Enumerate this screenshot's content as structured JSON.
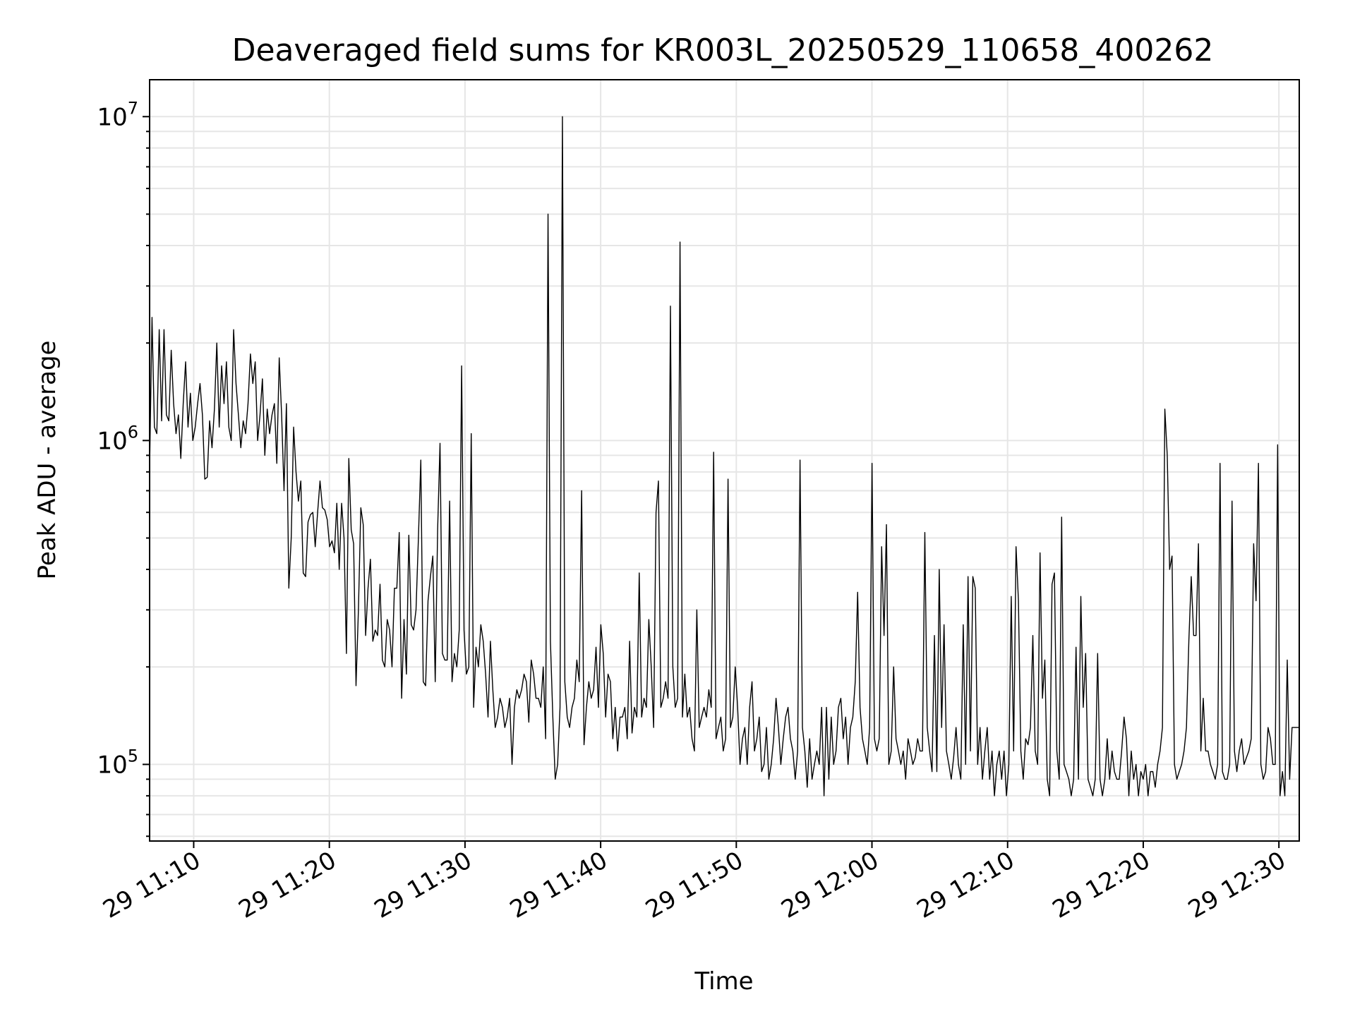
{
  "chart_data": {
    "type": "line",
    "title": "Deaveraged field sums for KR003L_20250529_110658_400262",
    "xlabel": "Time",
    "ylabel": "Peak ADU - average",
    "yscale": "log",
    "grid": true,
    "line_color": "#000000",
    "x_range": [
      "29 11:06:45",
      "29 12:31:30"
    ],
    "ylim": [
      58000,
      13000000
    ],
    "x_ticks": [
      "29 11:10",
      "29 11:20",
      "29 11:30",
      "29 11:40",
      "29 11:50",
      "29 12:00",
      "29 12:10",
      "29 12:20",
      "29 12:30"
    ],
    "y_ticks": [
      {
        "value": 100000,
        "base": "10",
        "exp": "5"
      },
      {
        "value": 1000000,
        "base": "10",
        "exp": "6"
      },
      {
        "value": 10000000,
        "base": "10",
        "exp": "7"
      }
    ],
    "series": [
      {
        "start": "29 11:06:45",
        "end": "29 12:31:30",
        "values": [
          820000,
          2400000,
          1100000,
          1050000,
          2200000,
          1150000,
          2200000,
          1200000,
          1150000,
          1900000,
          1300000,
          1050000,
          1200000,
          880000,
          1300000,
          1750000,
          1100000,
          1400000,
          1000000,
          1100000,
          1300000,
          1500000,
          1200000,
          760000,
          770000,
          1150000,
          950000,
          1250000,
          2000000,
          1100000,
          1700000,
          1300000,
          1750000,
          1100000,
          1000000,
          2200000,
          1500000,
          1200000,
          950000,
          1150000,
          1050000,
          1300000,
          1850000,
          1500000,
          1750000,
          1000000,
          1200000,
          1550000,
          900000,
          1250000,
          1050000,
          1200000,
          1300000,
          850000,
          1800000,
          1200000,
          700000,
          1300000,
          350000,
          500000,
          1100000,
          800000,
          650000,
          750000,
          390000,
          380000,
          560000,
          590000,
          600000,
          470000,
          600000,
          750000,
          620000,
          610000,
          570000,
          470000,
          490000,
          450000,
          640000,
          400000,
          640000,
          500000,
          220000,
          880000,
          530000,
          480000,
          175000,
          300000,
          620000,
          550000,
          250000,
          350000,
          430000,
          240000,
          260000,
          250000,
          360000,
          210000,
          200000,
          280000,
          260000,
          200000,
          350000,
          350000,
          520000,
          160000,
          280000,
          190000,
          510000,
          270000,
          260000,
          300000,
          500000,
          870000,
          180000,
          175000,
          320000,
          380000,
          440000,
          180000,
          530000,
          980000,
          220000,
          210000,
          210000,
          650000,
          180000,
          220000,
          200000,
          260000,
          1700000,
          260000,
          190000,
          200000,
          1050000,
          150000,
          230000,
          200000,
          270000,
          240000,
          190000,
          140000,
          240000,
          170000,
          130000,
          140000,
          160000,
          150000,
          130000,
          140000,
          160000,
          100000,
          150000,
          170000,
          160000,
          170000,
          190000,
          180000,
          135000,
          210000,
          190000,
          160000,
          160000,
          150000,
          200000,
          120000,
          5000000,
          240000,
          140000,
          90000,
          100000,
          150000,
          10000000,
          180000,
          140000,
          130000,
          150000,
          160000,
          210000,
          180000,
          700000,
          115000,
          150000,
          180000,
          160000,
          170000,
          230000,
          150000,
          270000,
          220000,
          140000,
          190000,
          180000,
          120000,
          150000,
          110000,
          140000,
          140000,
          150000,
          120000,
          240000,
          125000,
          150000,
          140000,
          390000,
          140000,
          160000,
          150000,
          280000,
          200000,
          130000,
          600000,
          750000,
          150000,
          160000,
          180000,
          160000,
          2600000,
          200000,
          150000,
          160000,
          4100000,
          140000,
          190000,
          140000,
          150000,
          120000,
          110000,
          300000,
          130000,
          140000,
          150000,
          140000,
          170000,
          150000,
          920000,
          120000,
          130000,
          140000,
          110000,
          120000,
          760000,
          130000,
          140000,
          200000,
          150000,
          100000,
          120000,
          130000,
          100000,
          150000,
          180000,
          110000,
          120000,
          140000,
          95000,
          100000,
          130000,
          90000,
          100000,
          120000,
          160000,
          130000,
          100000,
          120000,
          140000,
          150000,
          120000,
          110000,
          90000,
          110000,
          870000,
          130000,
          110000,
          85000,
          120000,
          90000,
          100000,
          110000,
          100000,
          150000,
          80000,
          150000,
          90000,
          140000,
          100000,
          110000,
          150000,
          160000,
          120000,
          140000,
          100000,
          130000,
          140000,
          180000,
          340000,
          150000,
          120000,
          110000,
          100000,
          130000,
          850000,
          120000,
          110000,
          120000,
          470000,
          250000,
          550000,
          100000,
          110000,
          200000,
          120000,
          110000,
          100000,
          110000,
          90000,
          120000,
          110000,
          100000,
          105000,
          120000,
          110000,
          110000,
          520000,
          130000,
          110000,
          95000,
          250000,
          95000,
          400000,
          130000,
          270000,
          110000,
          100000,
          90000,
          105000,
          130000,
          100000,
          90000,
          270000,
          100000,
          380000,
          110000,
          380000,
          350000,
          100000,
          130000,
          90000,
          110000,
          130000,
          90000,
          110000,
          80000,
          100000,
          110000,
          90000,
          110000,
          80000,
          100000,
          330000,
          110000,
          470000,
          320000,
          110000,
          90000,
          120000,
          115000,
          130000,
          250000,
          110000,
          100000,
          450000,
          160000,
          210000,
          90000,
          80000,
          360000,
          390000,
          110000,
          90000,
          580000,
          100000,
          95000,
          90000,
          80000,
          90000,
          230000,
          90000,
          330000,
          150000,
          220000,
          90000,
          85000,
          80000,
          90000,
          220000,
          90000,
          80000,
          90000,
          120000,
          90000,
          110000,
          95000,
          90000,
          90000,
          110000,
          140000,
          120000,
          80000,
          110000,
          90000,
          100000,
          80000,
          95000,
          90000,
          100000,
          80000,
          95000,
          95000,
          85000,
          100000,
          110000,
          130000,
          1250000,
          900000,
          400000,
          440000,
          100000,
          90000,
          95000,
          100000,
          110000,
          130000,
          240000,
          380000,
          250000,
          250000,
          480000,
          110000,
          160000,
          110000,
          110000,
          100000,
          95000,
          90000,
          100000,
          850000,
          95000,
          90000,
          90000,
          100000,
          650000,
          110000,
          95000,
          110000,
          120000,
          100000,
          105000,
          110000,
          120000,
          480000,
          320000,
          850000,
          100000,
          90000,
          95000,
          130000,
          120000,
          100000,
          100000,
          970000,
          80000,
          95000,
          80000,
          210000,
          90000,
          130000,
          130000,
          130000,
          130000
        ]
      }
    ]
  }
}
